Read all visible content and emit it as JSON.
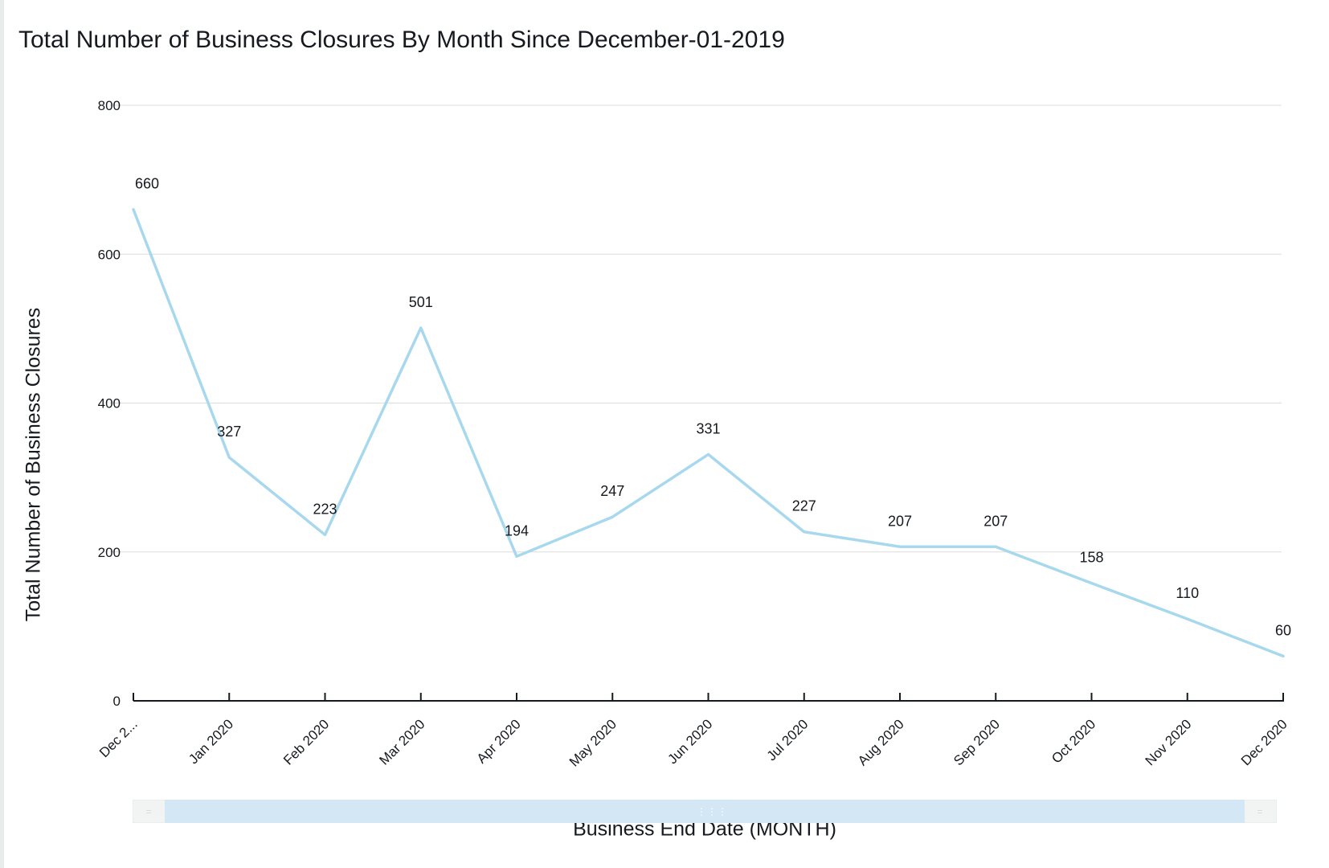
{
  "title": "Total Number of Business Closures By Month Since December-01-2019",
  "chart_data": {
    "type": "line",
    "title": "Total Number of Business Closures By Month Since December-01-2019",
    "xlabel": "Business End Date (MONTH)",
    "ylabel": "Total Number of Business Closures",
    "categories": [
      "Dec 2...",
      "Jan 2020",
      "Feb 2020",
      "Mar 2020",
      "Apr 2020",
      "May 2020",
      "Jun 2020",
      "Jul 2020",
      "Aug 2020",
      "Sep 2020",
      "Oct 2020",
      "Nov 2020",
      "Dec 2020"
    ],
    "values": [
      660,
      327,
      223,
      501,
      194,
      247,
      331,
      227,
      207,
      207,
      158,
      110,
      60
    ],
    "ylim": [
      0,
      800
    ],
    "yticks": [
      0,
      200,
      400,
      600,
      800
    ],
    "grid": true,
    "data_labels": true,
    "line_color": "#a8d8ee",
    "grid_color": "#dddddd",
    "axis_color": "#16191f"
  },
  "scrollbar": {
    "center_grip": "⋮⋮⋮",
    "left_grip": "=",
    "right_grip": "="
  }
}
